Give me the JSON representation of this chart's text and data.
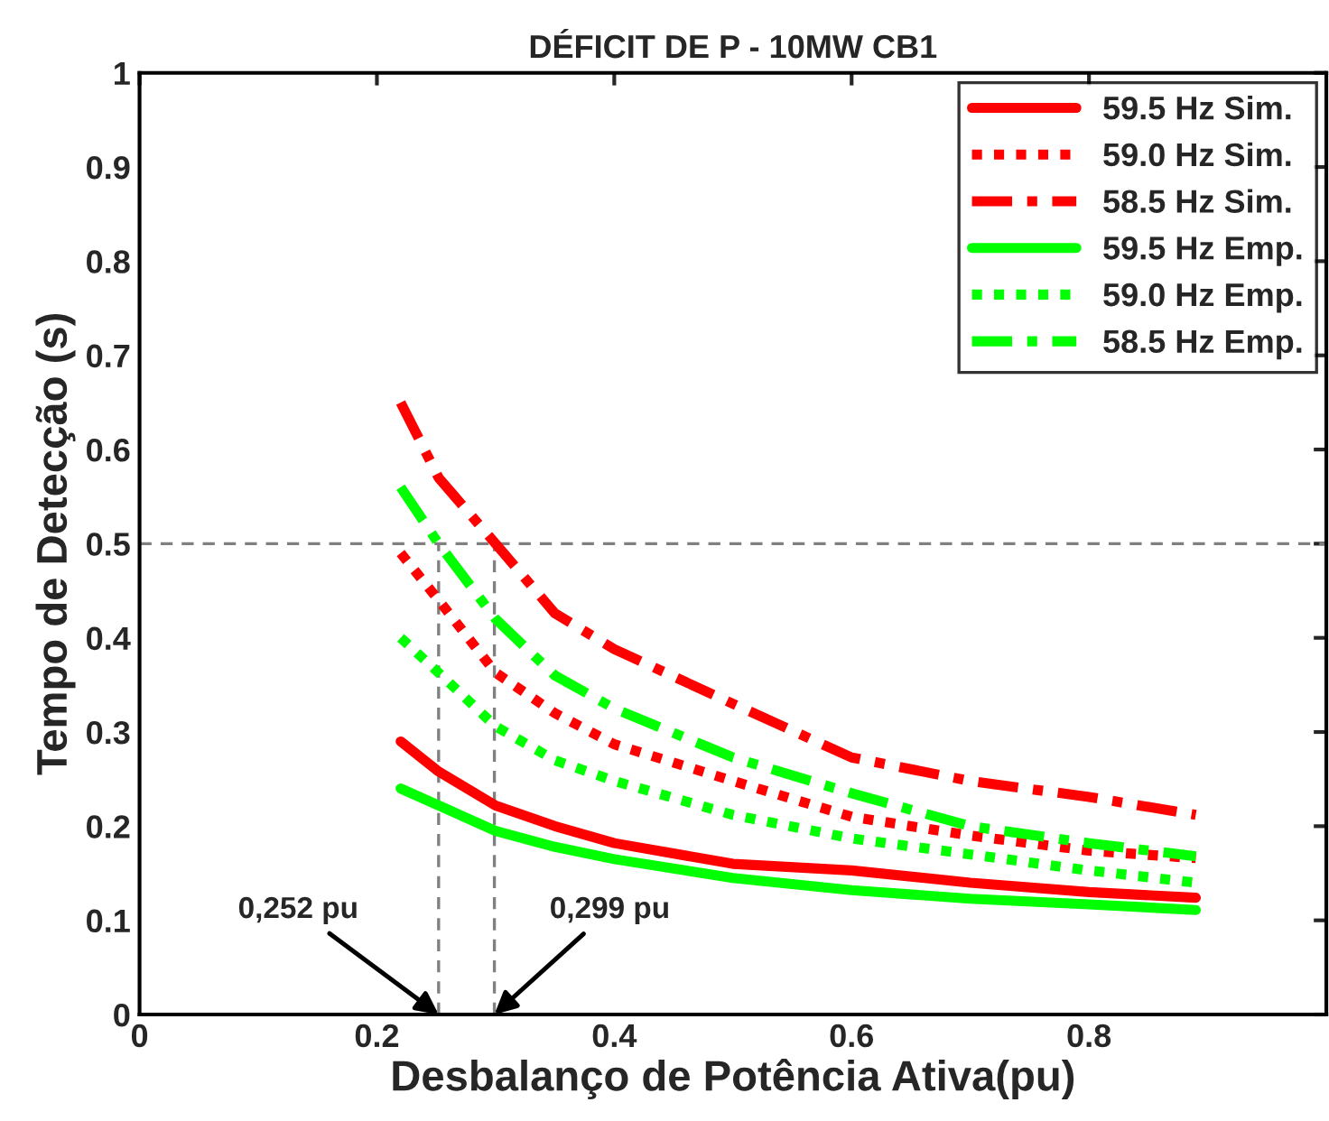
{
  "chart_data": {
    "type": "line",
    "title": "DÉFICIT DE P - 10MW CB1",
    "xlabel": "Desbalanço de Potência Ativa(pu)",
    "ylabel": "Tempo de Detecção (s)",
    "xlim": [
      0,
      1
    ],
    "xticks": [
      0,
      0.2,
      0.4,
      0.6,
      0.8
    ],
    "ylim": [
      0,
      1
    ],
    "yticks": [
      0,
      0.1,
      0.2,
      0.3,
      0.4,
      0.5,
      0.6,
      0.7,
      0.8,
      0.9,
      1
    ],
    "x": [
      0.22,
      0.252,
      0.3,
      0.35,
      0.4,
      0.5,
      0.6,
      0.7,
      0.8,
      0.89
    ],
    "series": [
      {
        "name": "59.5 Hz Sim.",
        "color": "#ff0000",
        "line_style": "solid",
        "values": [
          0.29,
          0.258,
          0.222,
          0.2,
          0.182,
          0.16,
          0.153,
          0.14,
          0.13,
          0.124
        ]
      },
      {
        "name": "59.0 Hz Sim.",
        "color": "#ff0000",
        "line_style": "dotted",
        "values": [
          0.49,
          0.44,
          0.363,
          0.32,
          0.287,
          0.248,
          0.21,
          0.19,
          0.174,
          0.166
        ]
      },
      {
        "name": "58.5 Hz Sim.",
        "color": "#ff0000",
        "line_style": "dashdot",
        "values": [
          0.65,
          0.57,
          0.5,
          0.426,
          0.388,
          0.33,
          0.273,
          0.248,
          0.231,
          0.212
        ]
      },
      {
        "name": "59.5 Hz Emp.",
        "color": "#00ff00",
        "line_style": "solid",
        "values": [
          0.24,
          0.222,
          0.195,
          0.178,
          0.165,
          0.145,
          0.132,
          0.123,
          0.117,
          0.111
        ]
      },
      {
        "name": "59.0 Hz Emp.",
        "color": "#00ff00",
        "line_style": "dotted",
        "values": [
          0.4,
          0.363,
          0.306,
          0.27,
          0.248,
          0.212,
          0.187,
          0.17,
          0.153,
          0.14
        ]
      },
      {
        "name": "58.5 Hz Emp.",
        "color": "#00ff00",
        "line_style": "dashdot",
        "values": [
          0.56,
          0.5,
          0.42,
          0.36,
          0.325,
          0.273,
          0.235,
          0.2,
          0.182,
          0.168
        ]
      }
    ],
    "ref_lines": [
      {
        "axis": "y",
        "value": 0.5,
        "color": "#808080",
        "line_style": "dashed"
      },
      {
        "axis": "x",
        "value": 0.252,
        "color": "#808080",
        "line_style": "dashed"
      },
      {
        "axis": "x",
        "value": 0.299,
        "color": "#808080",
        "line_style": "dashed"
      }
    ],
    "annotations": [
      {
        "text": "0,252 pu",
        "x": 0.252,
        "y": 0
      },
      {
        "text": "0,299 pu",
        "x": 0.299,
        "y": 0
      }
    ],
    "legend": "top right",
    "grid": false
  }
}
